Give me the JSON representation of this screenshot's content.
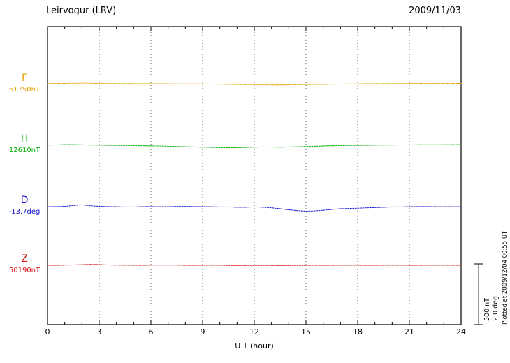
{
  "header": {
    "title": "Leirvogur (LRV)",
    "date": "2009/11/03"
  },
  "axis": {
    "xlabel": "U T (hour)"
  },
  "scale_bar": {
    "nt_label": "500 nT",
    "deg_label": "2.0 deg"
  },
  "footer_note": "Plotted at 2009/12/04 00:55 UT",
  "chart_data": {
    "type": "line",
    "title": "Leirvogur (LRV) magnetogram",
    "subtitle": "2009/11/03",
    "xlabel": "U T (hour)",
    "xlim": [
      0,
      24
    ],
    "xticks": [
      0,
      3,
      6,
      9,
      12,
      15,
      18,
      21,
      24
    ],
    "grid": "vertical-dotted",
    "legend_position": "left-margin",
    "scale": {
      "nT_per_bar": 500,
      "deg_per_bar": 2.0
    },
    "x": [
      0,
      0.5,
      1,
      1.5,
      2,
      2.5,
      3,
      3.5,
      4,
      4.5,
      5,
      5.5,
      6,
      6.5,
      7,
      7.5,
      8,
      8.5,
      9,
      9.5,
      10,
      10.5,
      11,
      11.5,
      12,
      12.5,
      13,
      13.5,
      14,
      14.5,
      15,
      15.5,
      16,
      16.5,
      17,
      17.5,
      18,
      18.5,
      19,
      19.5,
      20,
      20.5,
      21,
      21.5,
      22,
      22.5,
      23,
      23.5,
      24
    ],
    "series": [
      {
        "name": "F",
        "label": "F",
        "value_label": "51750nT",
        "base": 51750,
        "unit": "nT",
        "color": "#e8a000",
        "values": [
          51752,
          51752,
          51753,
          51754,
          51755,
          51754,
          51752,
          51752,
          51751,
          51751,
          51751,
          51750,
          51750,
          51750,
          51750,
          51749,
          51749,
          51748,
          51748,
          51747,
          51746,
          51745,
          51744,
          51743,
          51742,
          51741,
          51740,
          51740,
          51741,
          51742,
          51743,
          51744,
          51745,
          51746,
          51747,
          51748,
          51749,
          51750,
          51750,
          51751,
          51751,
          51752,
          51752,
          51752,
          51753,
          51753,
          51753,
          51753,
          51753
        ]
      },
      {
        "name": "H",
        "label": "H",
        "value_label": "12610nT",
        "base": 12610,
        "unit": "nT",
        "color": "#00b000",
        "values": [
          12612,
          12613,
          12615,
          12616,
          12614,
          12612,
          12611,
          12610,
          12609,
          12608,
          12607,
          12606,
          12605,
          12604,
          12602,
          12600,
          12598,
          12596,
          12594,
          12592,
          12590,
          12590,
          12591,
          12592,
          12594,
          12596,
          12595,
          12594,
          12596,
          12598,
          12600,
          12602,
          12604,
          12606,
          12607,
          12608,
          12609,
          12610,
          12611,
          12612,
          12612,
          12613,
          12613,
          12614,
          12614,
          12614,
          12615,
          12615,
          12615
        ]
      },
      {
        "name": "D",
        "label": "D",
        "value_label": "-13.7deg",
        "base": -13.7,
        "unit": "deg",
        "color": "#1515d0",
        "values": [
          -13.7,
          -13.7,
          -13.69,
          -13.66,
          -13.64,
          -13.67,
          -13.69,
          -13.7,
          -13.7,
          -13.71,
          -13.71,
          -13.7,
          -13.7,
          -13.7,
          -13.7,
          -13.69,
          -13.69,
          -13.7,
          -13.7,
          -13.7,
          -13.71,
          -13.71,
          -13.72,
          -13.72,
          -13.71,
          -13.72,
          -13.74,
          -13.77,
          -13.8,
          -13.83,
          -13.85,
          -13.84,
          -13.82,
          -13.79,
          -13.77,
          -13.76,
          -13.75,
          -13.74,
          -13.73,
          -13.72,
          -13.71,
          -13.71,
          -13.7,
          -13.7,
          -13.7,
          -13.7,
          -13.7,
          -13.7,
          -13.7
        ]
      },
      {
        "name": "Z",
        "label": "Z",
        "value_label": "50190nT",
        "base": 50190,
        "unit": "nT",
        "color": "#d81414",
        "values": [
          50190,
          50190,
          50191,
          50193,
          50196,
          50198,
          50196,
          50193,
          50191,
          50190,
          50190,
          50190,
          50191,
          50191,
          50191,
          50191,
          50190,
          50190,
          50190,
          50190,
          50190,
          50189,
          50189,
          50189,
          50189,
          50189,
          50189,
          50188,
          50188,
          50189,
          50189,
          50190,
          50190,
          50190,
          50190,
          50190,
          50190,
          50190,
          50190,
          50190,
          50190,
          50190,
          50190,
          50190,
          50190,
          50190,
          50190,
          50190,
          50190
        ]
      }
    ]
  }
}
